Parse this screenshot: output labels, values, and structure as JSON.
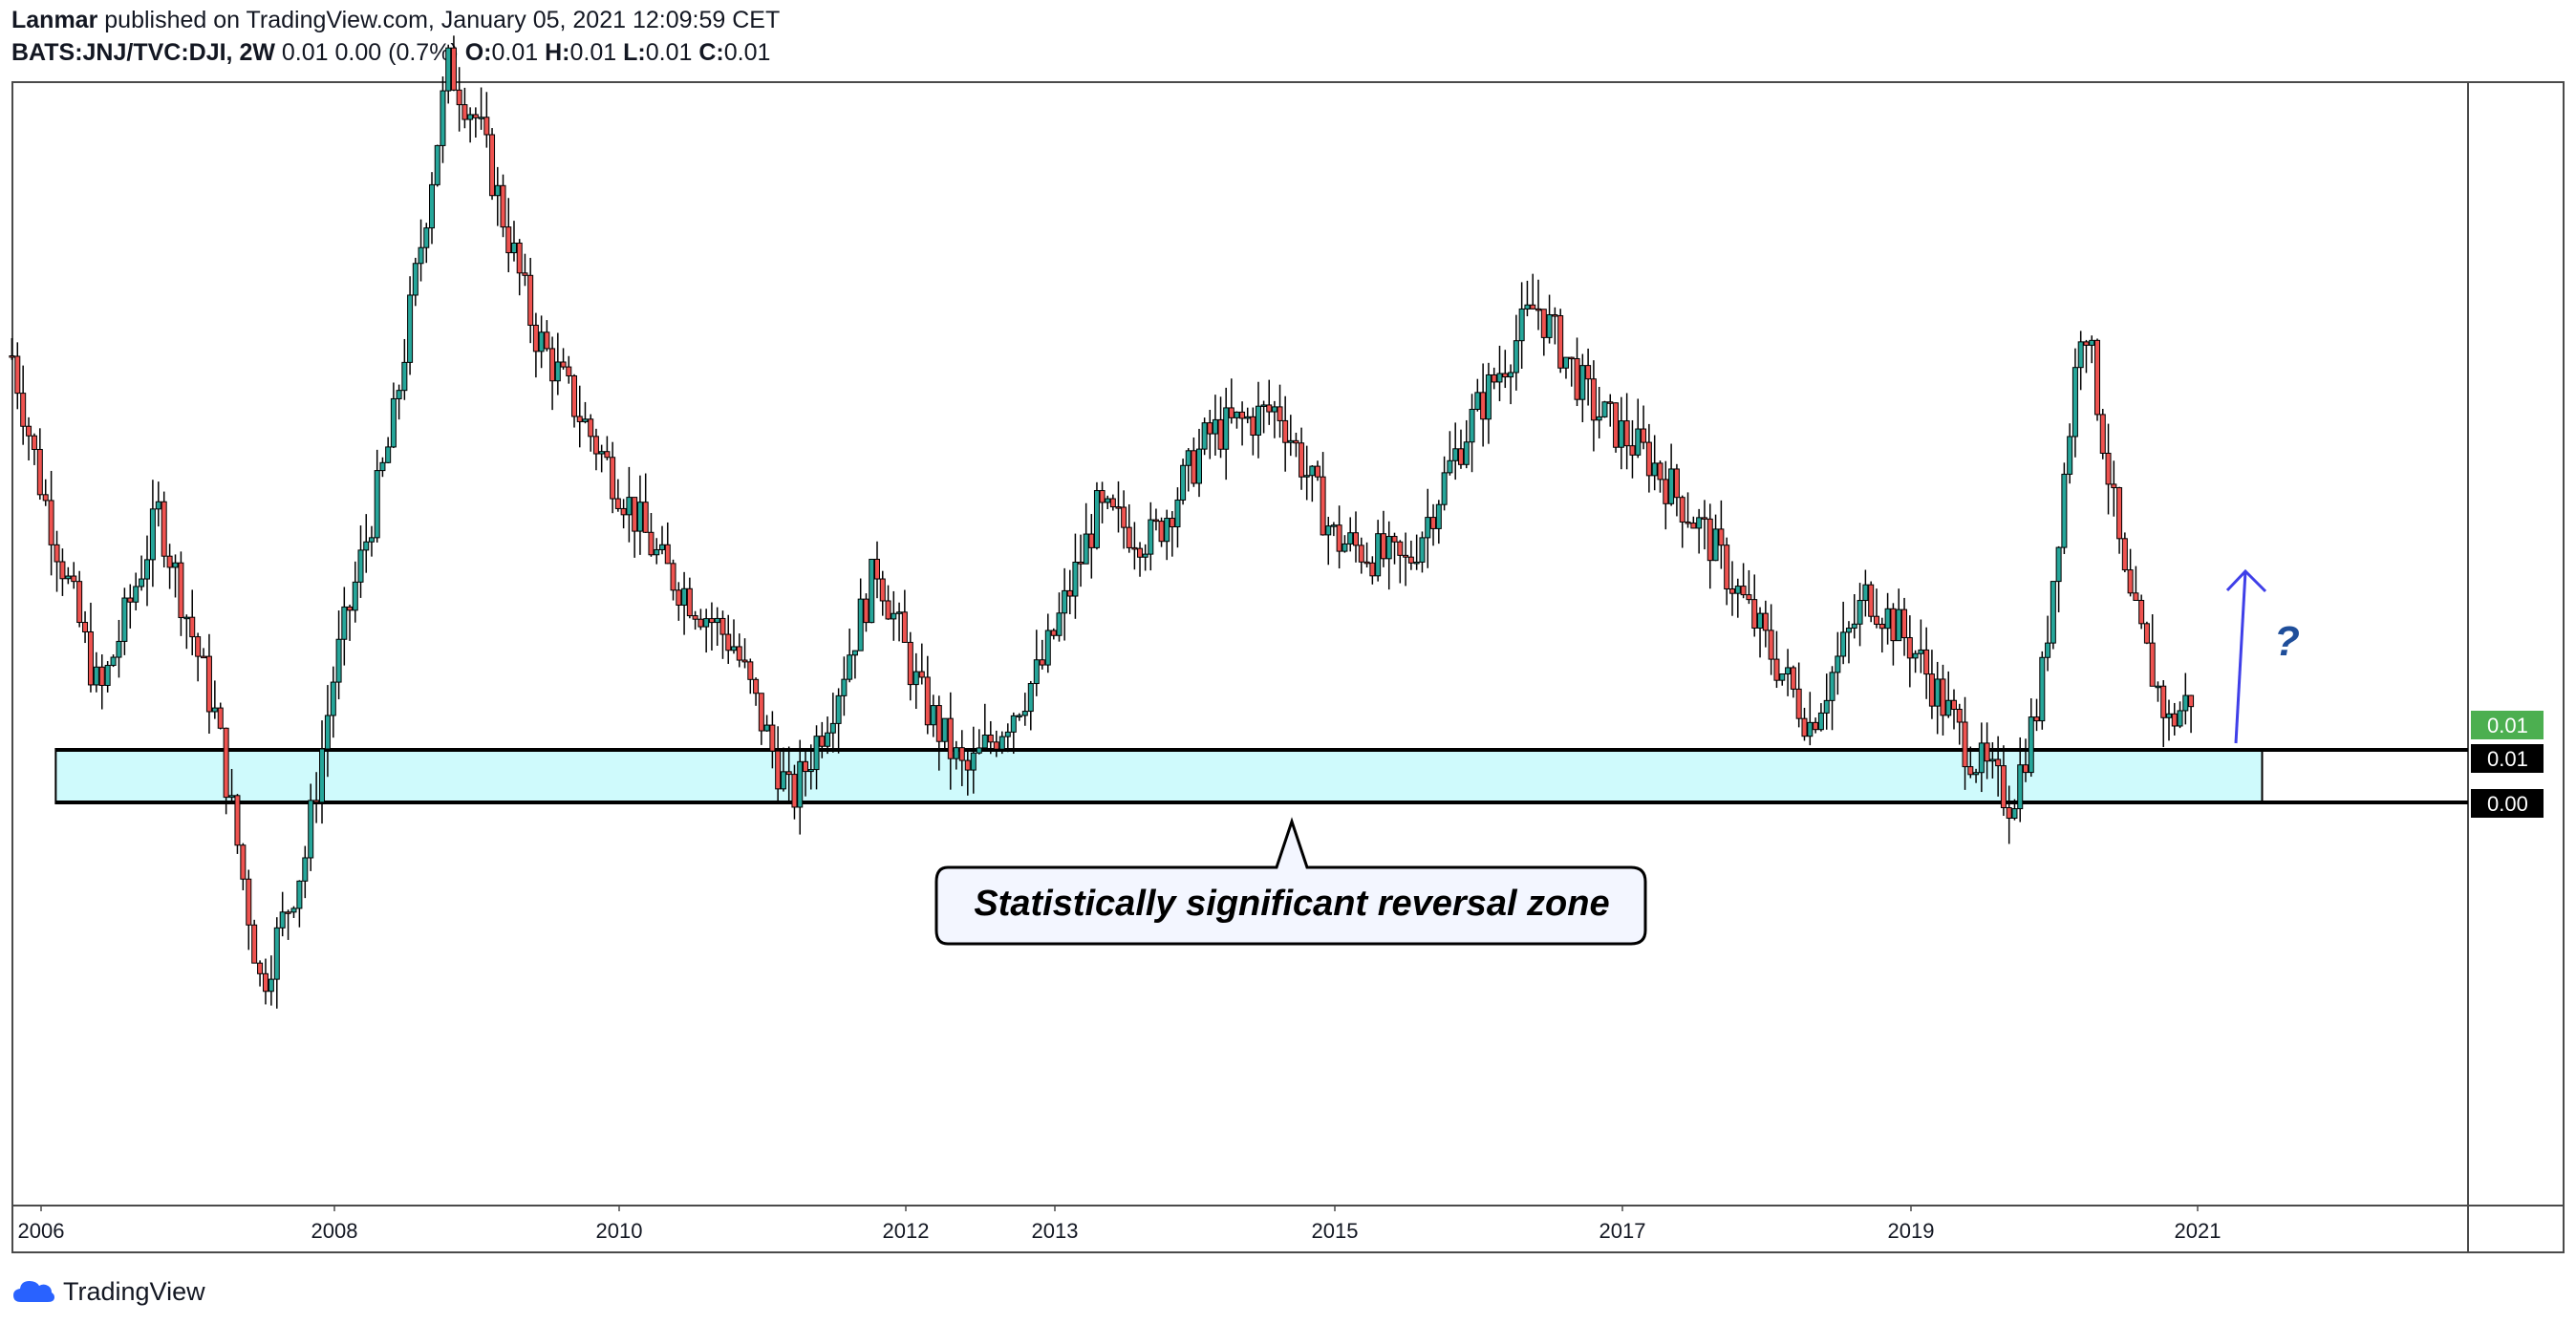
{
  "header": {
    "author": "Lanmar",
    "published_text": "published on TradingView.com, January 05, 2021 12:09:59 CET",
    "symbol": "BATS:JNJ/TVC:DJI, 2W",
    "change": "0.01 0.00 (0.7%)",
    "o_label": "O:",
    "o_value": "0.01",
    "h_label": "H:",
    "h_value": "0.01",
    "l_label": "L:",
    "l_value": "0.01",
    "c_label": "C:",
    "c_value": "0.01"
  },
  "footer": {
    "brand": "TradingView"
  },
  "colors": {
    "up": "#26a69a",
    "down": "#ef5350",
    "zone_fill": "#cffafc",
    "arrow": "#3f3fe8",
    "price_tag_last": "#4caf50",
    "price_tag_level": "#000000"
  },
  "chart_data": {
    "type": "candlestick",
    "x_axis_labels": [
      "2006",
      "2008",
      "2010",
      "2012",
      "2013",
      "2015",
      "2017",
      "2019",
      "2021"
    ],
    "x_axis_years": [
      2006.0,
      2008.0,
      2010.0,
      2012.0,
      2013.0,
      2015.0,
      2017.0,
      2019.0,
      2021.0
    ],
    "price_labels": [
      {
        "text": "0.01",
        "value": 0.01,
        "style": "last"
      },
      {
        "text": "0.01",
        "value": 0.01,
        "style": "level"
      },
      {
        "text": "0.00",
        "value": 0.0,
        "style": "level"
      }
    ],
    "zone": {
      "from_year": 2006.1,
      "to_year": 2021.45,
      "label": "Statistically significant reversal zone"
    },
    "annotation": {
      "arrow": "up",
      "text": "?"
    },
    "series": {
      "name": "BATS:JNJ/TVC:DJI",
      "interval": "2W",
      "approx_close_path": [
        [
          2005.8,
          0.0107
        ],
        [
          2006.0,
          0.0102
        ],
        [
          2006.4,
          0.0094
        ],
        [
          2006.8,
          0.0101
        ],
        [
          2007.2,
          0.0093
        ],
        [
          2007.5,
          0.0083
        ],
        [
          2007.8,
          0.0088
        ],
        [
          2008.0,
          0.0095
        ],
        [
          2008.4,
          0.0104
        ],
        [
          2008.8,
          0.0118
        ],
        [
          2009.0,
          0.0116
        ],
        [
          2009.4,
          0.0108
        ],
        [
          2009.8,
          0.0104
        ],
        [
          2010.3,
          0.0099
        ],
        [
          2010.8,
          0.0096
        ],
        [
          2011.2,
          0.009
        ],
        [
          2011.5,
          0.0094
        ],
        [
          2011.8,
          0.0099
        ],
        [
          2012.1,
          0.0094
        ],
        [
          2012.4,
          0.0091
        ],
        [
          2012.9,
          0.0095
        ],
        [
          2013.3,
          0.0101
        ],
        [
          2013.7,
          0.01
        ],
        [
          2014.1,
          0.0104
        ],
        [
          2014.6,
          0.0105
        ],
        [
          2015.0,
          0.01
        ],
        [
          2015.5,
          0.0099
        ],
        [
          2015.9,
          0.0104
        ],
        [
          2016.4,
          0.0109
        ],
        [
          2016.8,
          0.0105
        ],
        [
          2017.2,
          0.0103
        ],
        [
          2017.6,
          0.01
        ],
        [
          2018.0,
          0.0096
        ],
        [
          2018.3,
          0.0093
        ],
        [
          2018.7,
          0.0098
        ],
        [
          2019.0,
          0.0096
        ],
        [
          2019.4,
          0.0092
        ],
        [
          2019.7,
          0.009
        ],
        [
          2019.9,
          0.0094
        ],
        [
          2020.2,
          0.0109
        ],
        [
          2020.5,
          0.0098
        ],
        [
          2020.8,
          0.0093
        ],
        [
          2020.95,
          0.0094
        ],
        [
          2021.0,
          0.0095
        ]
      ]
    }
  }
}
